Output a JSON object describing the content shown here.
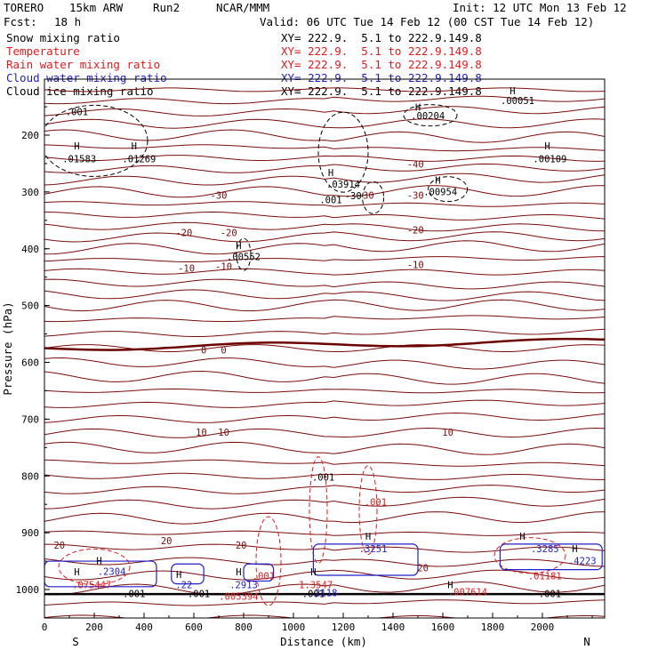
{
  "header": {
    "model": "TORERO",
    "resolution": "15km ARW",
    "run": "Run2",
    "org": "NCAR/MMM",
    "init": "Init: 12 UTC Mon 13 Feb 12",
    "fcst_label": "Fcst:",
    "fcst_value": "18 h",
    "valid": "Valid: 06 UTC Tue 14 Feb 12 (00 CST Tue 14 Feb 12)"
  },
  "colors": {
    "snow": "#000000",
    "temperature": "#7a0c0c",
    "rain": "#e41a1c",
    "cloud_water": "#1f1fcc",
    "cloud_ice": "#000000",
    "freezing": "#6b0000"
  },
  "legend": [
    {
      "name": "Snow mixing ratio",
      "xy": "XY= 222.9.  5.1 to 222.9.149.8",
      "color": "#000000"
    },
    {
      "name": "Temperature",
      "xy": "XY= 222.9.  5.1 to 222.9.149.8",
      "color": "#e41a1c"
    },
    {
      "name": "Rain water mixing ratio",
      "xy": "XY= 222.9.  5.1 to 222.9.149.8",
      "color": "#e41a1c"
    },
    {
      "name": "Cloud water mixing ratio",
      "xy": "XY= 222.9.  5.1 to 222.9.149.8",
      "color": "#1f1fcc"
    },
    {
      "name": "Cloud ice mixing ratio",
      "xy": "XY= 222.9.  5.1 to 222.9.149.8",
      "color": "#000000"
    }
  ],
  "chart_data": {
    "type": "contour-cross-section",
    "title": "TORERO 15km ARW Run2 cross section",
    "xlabel": "Distance (km)",
    "ylabel": "Pressure (hPa)",
    "xlim": [
      0,
      2250
    ],
    "ylim": [
      1050,
      100
    ],
    "xticks": [
      0,
      200,
      400,
      600,
      800,
      1000,
      1200,
      1400,
      1600,
      1800,
      2000
    ],
    "yticks": [
      200,
      300,
      400,
      500,
      600,
      700,
      800,
      900,
      1000
    ],
    "direction_labels": {
      "left": "S",
      "right": "N"
    },
    "temperature_labels": [
      {
        "text": "-30",
        "x": 700,
        "p": 312
      },
      {
        "text": "-20",
        "x": 560,
        "p": 378
      },
      {
        "text": "-20",
        "x": 740,
        "p": 378
      },
      {
        "text": "-10",
        "x": 570,
        "p": 440
      },
      {
        "text": "-10",
        "x": 720,
        "p": 437
      },
      {
        "text": "-40",
        "x": 1490,
        "p": 257
      },
      {
        "text": "-30",
        "x": 1290,
        "p": 312
      },
      {
        "text": "-30",
        "x": 1490,
        "p": 312
      },
      {
        "text": "-20",
        "x": 1490,
        "p": 373
      },
      {
        "text": "-10",
        "x": 1490,
        "p": 434
      },
      {
        "text": "0",
        "x": 640,
        "p": 584
      },
      {
        "text": "0",
        "x": 720,
        "p": 584
      },
      {
        "text": "10",
        "x": 630,
        "p": 729
      },
      {
        "text": "10",
        "x": 720,
        "p": 729
      },
      {
        "text": "10",
        "x": 1620,
        "p": 729
      },
      {
        "text": "20",
        "x": 60,
        "p": 928
      },
      {
        "text": "20",
        "x": 490,
        "p": 920
      },
      {
        "text": "20",
        "x": 790,
        "p": 928
      },
      {
        "text": "20",
        "x": 1520,
        "p": 968
      }
    ],
    "snow_labels": [
      {
        "text": ".001",
        "x": 130,
        "p": 165
      },
      {
        "text": ".01583",
        "x": 140,
        "p": 248
      },
      {
        "text": ".01269",
        "x": 380,
        "p": 248
      },
      {
        "text": ".00204",
        "x": 1540,
        "p": 172
      },
      {
        "text": ".00051",
        "x": 1900,
        "p": 145
      },
      {
        "text": ".00109",
        "x": 2030,
        "p": 248
      },
      {
        "text": ".03914",
        "x": 1200,
        "p": 292
      },
      {
        "text": ".001",
        "x": 1150,
        "p": 320
      },
      {
        "text": ".00954",
        "x": 1590,
        "p": 306
      },
      {
        "text": ".00552",
        "x": 800,
        "p": 420
      },
      {
        "text": "-30",
        "x": 1240,
        "p": 313
      },
      {
        "text": ".001",
        "x": 1120,
        "p": 808
      },
      {
        "text": ".001",
        "x": 360,
        "p": 1013
      },
      {
        "text": ".001",
        "x": 620,
        "p": 1013
      },
      {
        "text": ".001",
        "x": 1080,
        "p": 1013
      },
      {
        "text": ".001",
        "x": 2030,
        "p": 1013
      }
    ],
    "rain_labels": [
      {
        "text": ".001",
        "x": 1330,
        "p": 852
      },
      {
        "text": ".001",
        "x": 880,
        "p": 982
      },
      {
        "text": ".075447",
        "x": 190,
        "p": 998
      },
      {
        "text": ".005394",
        "x": 780,
        "p": 1018
      },
      {
        "text": "1.3547",
        "x": 1090,
        "p": 998
      },
      {
        "text": ".007614",
        "x": 1700,
        "p": 1010
      },
      {
        "text": ".01181",
        "x": 2010,
        "p": 982
      }
    ],
    "cloud_water_labels": [
      {
        "text": ".2304",
        "x": 270,
        "p": 974
      },
      {
        "text": ".22",
        "x": 560,
        "p": 998
      },
      {
        "text": ".2913",
        "x": 800,
        "p": 998
      },
      {
        "text": ".3251",
        "x": 1320,
        "p": 934
      },
      {
        "text": ".3285",
        "x": 2010,
        "p": 934
      },
      {
        "text": ".4223",
        "x": 2160,
        "p": 955
      },
      {
        "text": ".2118",
        "x": 1120,
        "p": 1012
      }
    ],
    "max_markers": [
      {
        "text": "H",
        "x": 130,
        "p": 225
      },
      {
        "text": "H",
        "x": 360,
        "p": 225
      },
      {
        "text": "H",
        "x": 1500,
        "p": 157
      },
      {
        "text": "H",
        "x": 1880,
        "p": 128
      },
      {
        "text": "H",
        "x": 2020,
        "p": 225
      },
      {
        "text": "H",
        "x": 1150,
        "p": 272
      },
      {
        "text": "H",
        "x": 1580,
        "p": 285
      },
      {
        "text": "H",
        "x": 780,
        "p": 400
      },
      {
        "text": "H",
        "x": 130,
        "p": 975
      },
      {
        "text": "H",
        "x": 220,
        "p": 955
      },
      {
        "text": "H",
        "x": 540,
        "p": 980
      },
      {
        "text": "H",
        "x": 780,
        "p": 975
      },
      {
        "text": "H",
        "x": 1080,
        "p": 975
      },
      {
        "text": "H",
        "x": 1300,
        "p": 912
      },
      {
        "text": "H",
        "x": 1630,
        "p": 998
      },
      {
        "text": "H",
        "x": 1920,
        "p": 912
      },
      {
        "text": "H",
        "x": 2130,
        "p": 934
      }
    ]
  }
}
